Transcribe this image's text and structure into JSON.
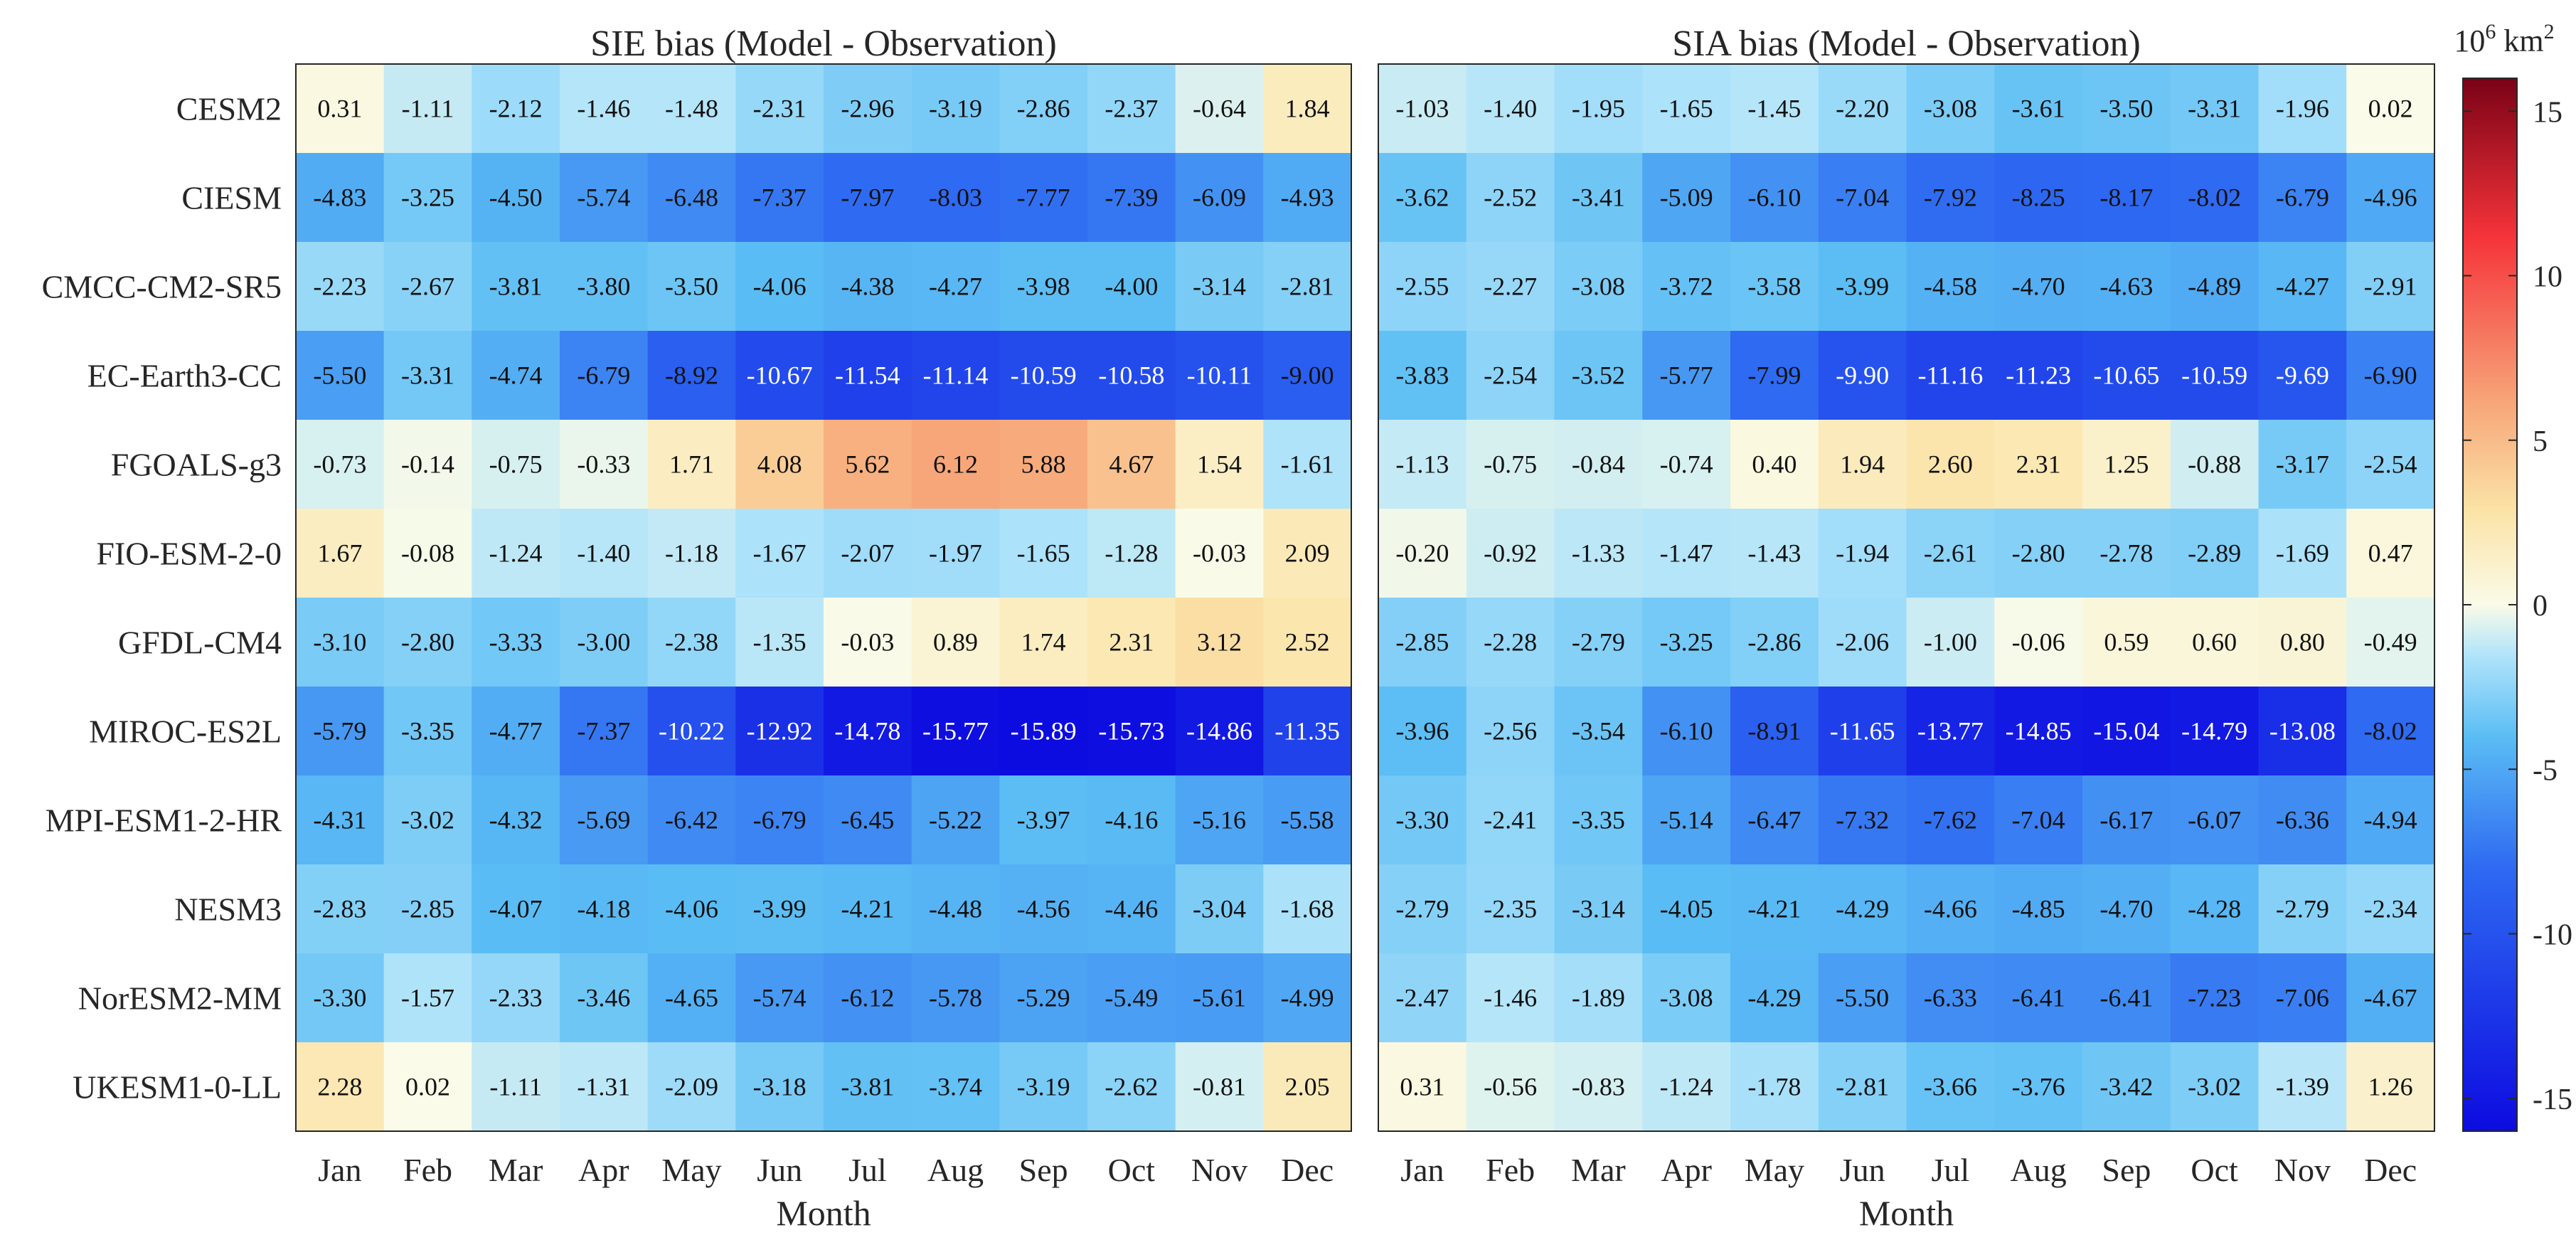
{
  "chart_data": [
    {
      "type": "heatmap",
      "title": "SIE bias (Model - Observation)",
      "xlabel": "Month",
      "ylabel": "",
      "x": [
        "Jan",
        "Feb",
        "Mar",
        "Apr",
        "May",
        "Jun",
        "Jul",
        "Aug",
        "Sep",
        "Oct",
        "Nov",
        "Dec"
      ],
      "y": [
        "CESM2",
        "CIESM",
        "CMCC-CM2-SR5",
        "EC-Earth3-CC",
        "FGOALS-g3",
        "FIO-ESM-2-0",
        "GFDL-CM4",
        "MIROC-ES2L",
        "MPI-ESM1-2-HR",
        "NESM3",
        "NorESM2-MM",
        "UKESM1-0-LL"
      ],
      "values": [
        [
          0.31,
          -1.11,
          -2.12,
          -1.46,
          -1.48,
          -2.31,
          -2.96,
          -3.19,
          -2.86,
          -2.37,
          -0.64,
          1.84
        ],
        [
          -4.83,
          -3.25,
          -4.5,
          -5.74,
          -6.48,
          -7.37,
          -7.97,
          -8.03,
          -7.77,
          -7.39,
          -6.09,
          -4.93
        ],
        [
          -2.23,
          -2.67,
          -3.81,
          -3.8,
          -3.5,
          -4.06,
          -4.38,
          -4.27,
          -3.98,
          -4.0,
          -3.14,
          -2.81
        ],
        [
          -5.5,
          -3.31,
          -4.74,
          -6.79,
          -8.92,
          -10.67,
          -11.54,
          -11.14,
          -10.59,
          -10.58,
          -10.11,
          -9.0
        ],
        [
          -0.73,
          -0.14,
          -0.75,
          -0.33,
          1.71,
          4.08,
          5.62,
          6.12,
          5.88,
          4.67,
          1.54,
          -1.61
        ],
        [
          1.67,
          -0.08,
          -1.24,
          -1.4,
          -1.18,
          -1.67,
          -2.07,
          -1.97,
          -1.65,
          -1.28,
          -0.03,
          2.09
        ],
        [
          -3.1,
          -2.8,
          -3.33,
          -3.0,
          -2.38,
          -1.35,
          -0.03,
          0.89,
          1.74,
          2.31,
          3.12,
          2.52
        ],
        [
          -5.79,
          -3.35,
          -4.77,
          -7.37,
          -10.22,
          -12.92,
          -14.78,
          -15.77,
          -15.89,
          -15.73,
          -14.86,
          -11.35
        ],
        [
          -4.31,
          -3.02,
          -4.32,
          -5.69,
          -6.42,
          -6.79,
          -6.45,
          -5.22,
          -3.97,
          -4.16,
          -5.16,
          -5.58
        ],
        [
          -2.83,
          -2.85,
          -4.07,
          -4.18,
          -4.06,
          -3.99,
          -4.21,
          -4.48,
          -4.56,
          -4.46,
          -3.04,
          -1.68
        ],
        [
          -3.3,
          -1.57,
          -2.33,
          -3.46,
          -4.65,
          -5.74,
          -6.12,
          -5.78,
          -5.29,
          -5.49,
          -5.61,
          -4.99
        ],
        [
          2.28,
          0.02,
          -1.11,
          -1.31,
          -2.09,
          -3.18,
          -3.81,
          -3.74,
          -3.19,
          -2.62,
          -0.81,
          2.05
        ]
      ]
    },
    {
      "type": "heatmap",
      "title": "SIA bias (Model - Observation)",
      "xlabel": "Month",
      "ylabel": "",
      "x": [
        "Jan",
        "Feb",
        "Mar",
        "Apr",
        "May",
        "Jun",
        "Jul",
        "Aug",
        "Sep",
        "Oct",
        "Nov",
        "Dec"
      ],
      "y": [
        "CESM2",
        "CIESM",
        "CMCC-CM2-SR5",
        "EC-Earth3-CC",
        "FGOALS-g3",
        "FIO-ESM-2-0",
        "GFDL-CM4",
        "MIROC-ES2L",
        "MPI-ESM1-2-HR",
        "NESM3",
        "NorESM2-MM",
        "UKESM1-0-LL"
      ],
      "values": [
        [
          -1.03,
          -1.4,
          -1.95,
          -1.65,
          -1.45,
          -2.2,
          -3.08,
          -3.61,
          -3.5,
          -3.31,
          -1.96,
          0.02
        ],
        [
          -3.62,
          -2.52,
          -3.41,
          -5.09,
          -6.1,
          -7.04,
          -7.92,
          -8.25,
          -8.17,
          -8.02,
          -6.79,
          -4.96
        ],
        [
          -2.55,
          -2.27,
          -3.08,
          -3.72,
          -3.58,
          -3.99,
          -4.58,
          -4.7,
          -4.63,
          -4.89,
          -4.27,
          -2.91
        ],
        [
          -3.83,
          -2.54,
          -3.52,
          -5.77,
          -7.99,
          -9.9,
          -11.16,
          -11.23,
          -10.65,
          -10.59,
          -9.69,
          -6.9
        ],
        [
          -1.13,
          -0.75,
          -0.84,
          -0.74,
          0.4,
          1.94,
          2.6,
          2.31,
          1.25,
          -0.88,
          -3.17,
          -2.54
        ],
        [
          -0.2,
          -0.92,
          -1.33,
          -1.47,
          -1.43,
          -1.94,
          -2.61,
          -2.8,
          -2.78,
          -2.89,
          -1.69,
          0.47
        ],
        [
          -2.85,
          -2.28,
          -2.79,
          -3.25,
          -2.86,
          -2.06,
          -1.0,
          -0.06,
          0.59,
          0.6,
          0.8,
          -0.49
        ],
        [
          -3.96,
          -2.56,
          -3.54,
          -6.1,
          -8.91,
          -11.65,
          -13.77,
          -14.85,
          -15.04,
          -14.79,
          -13.08,
          -8.02
        ],
        [
          -3.3,
          -2.41,
          -3.35,
          -5.14,
          -6.47,
          -7.32,
          -7.62,
          -7.04,
          -6.17,
          -6.07,
          -6.36,
          -4.94
        ],
        [
          -2.79,
          -2.35,
          -3.14,
          -4.05,
          -4.21,
          -4.29,
          -4.66,
          -4.85,
          -4.7,
          -4.28,
          -2.79,
          -2.34
        ],
        [
          -2.47,
          -1.46,
          -1.89,
          -3.08,
          -4.29,
          -5.5,
          -6.33,
          -6.41,
          -6.41,
          -7.23,
          -7.06,
          -4.67
        ],
        [
          0.31,
          -0.56,
          -0.83,
          -1.24,
          -1.78,
          -2.81,
          -3.66,
          -3.76,
          -3.42,
          -3.02,
          -1.39,
          1.26
        ]
      ]
    }
  ],
  "colorbar": {
    "unit_base": "10",
    "unit_exp": "6",
    "unit_suffix": "km",
    "unit_sup": "2",
    "range": [
      -16,
      16
    ],
    "ticks": [
      15,
      10,
      5,
      0,
      -5,
      -10,
      -15
    ],
    "tick_labels": [
      "15",
      "10",
      "5",
      "0",
      "-5",
      "-10",
      "-15"
    ]
  },
  "colors": {
    "min": "#0d0be0",
    "neg_strong": "#2e6af2",
    "neg_mid": "#5bbdf4",
    "neg_light": "#aee3fa",
    "zero": "#fafbe8",
    "pos_light": "#fbe3a6",
    "pos_mid": "#f7a77a",
    "pos_strong": "#f5333a",
    "max": "#7a0216"
  }
}
